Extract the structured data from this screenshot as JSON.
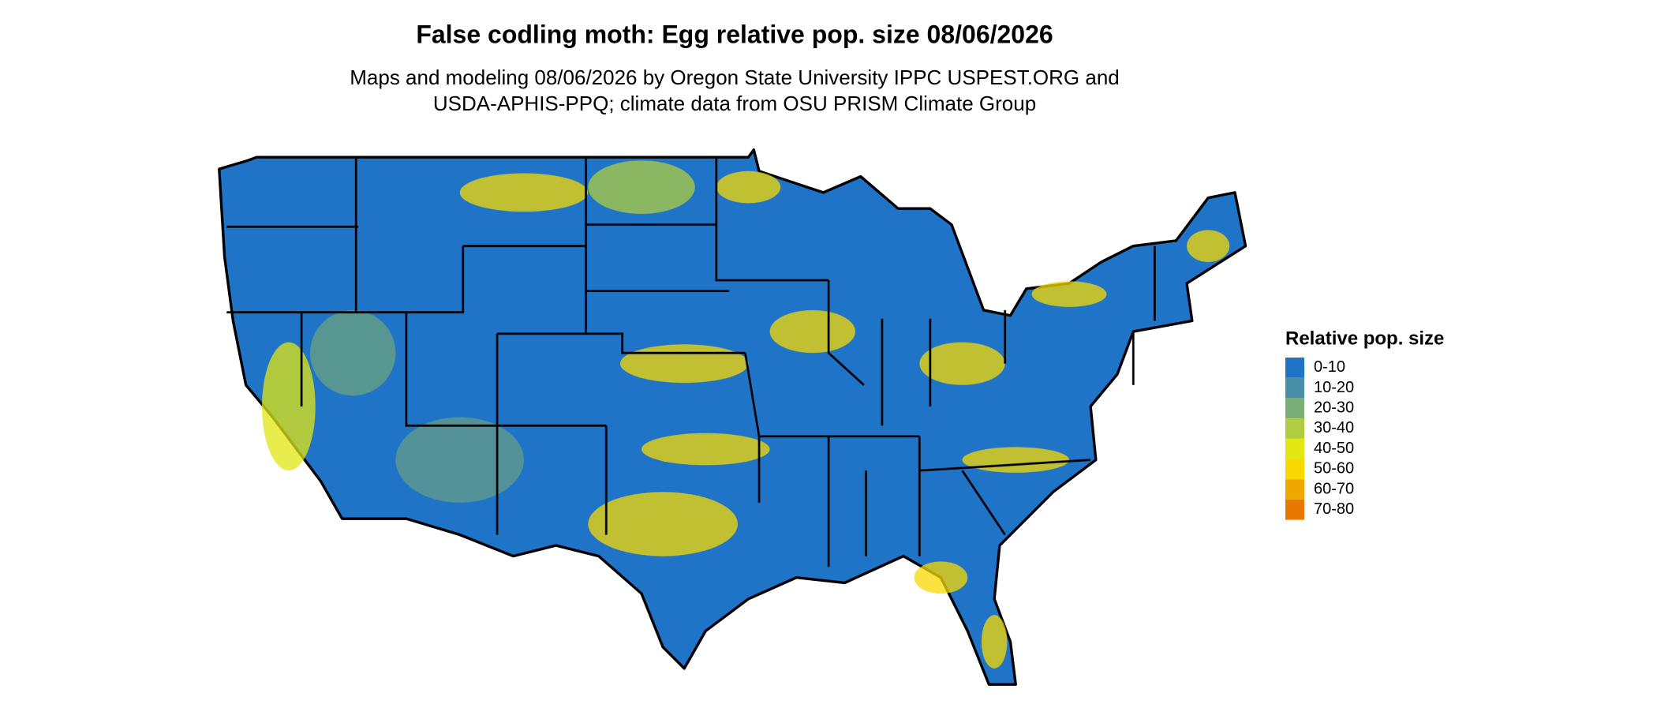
{
  "title": "False codling moth: Egg relative pop. size 08/06/2026",
  "subtitle": [
    "Maps and modeling 08/06/2026 by Oregon State University IPPC USPEST.ORG and",
    "USDA-APHIS-PPQ; climate data from OSU PRISM Climate Group"
  ],
  "legend": {
    "title": "Relative pop. size",
    "items": [
      {
        "label": "0-10",
        "color": "#1f74c8"
      },
      {
        "label": "10-20",
        "color": "#4a8fa8"
      },
      {
        "label": "20-30",
        "color": "#7aaf78"
      },
      {
        "label": "30-40",
        "color": "#b0cc40"
      },
      {
        "label": "40-50",
        "color": "#e2e612"
      },
      {
        "label": "50-60",
        "color": "#f8d800"
      },
      {
        "label": "60-70",
        "color": "#f0a800"
      },
      {
        "label": "70-80",
        "color": "#e87800"
      }
    ]
  }
}
